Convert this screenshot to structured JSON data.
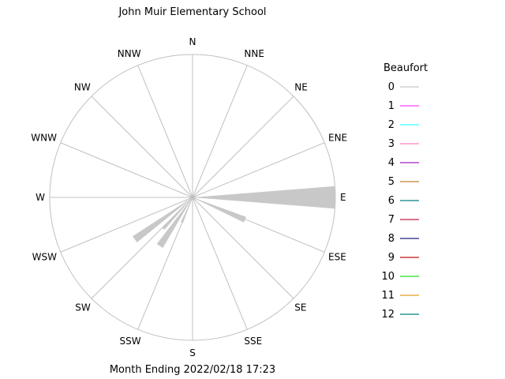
{
  "chart_data": {
    "type": "polar-bar",
    "title": "John Muir Elementary School",
    "subtitle": "Month Ending 2022/02/18 17:23",
    "directions": [
      "N",
      "NNE",
      "NE",
      "ENE",
      "E",
      "ESE",
      "SE",
      "SSE",
      "S",
      "SSW",
      "SW",
      "WSW",
      "W",
      "WNW",
      "NW",
      "NNW"
    ],
    "petals": [
      {
        "bearing": 90,
        "width": 9,
        "value": 1.0
      },
      {
        "bearing": 113,
        "width": 6,
        "value": 0.4
      },
      {
        "bearing": 158,
        "width": 2,
        "value": 0.07
      },
      {
        "bearing": 180,
        "width": 2,
        "value": 0.04
      },
      {
        "bearing": 203,
        "width": 5,
        "value": 0.19
      },
      {
        "bearing": 214,
        "width": 7,
        "value": 0.41
      },
      {
        "bearing": 223,
        "width": 4,
        "value": 0.3
      },
      {
        "bearing": 234,
        "width": 6,
        "value": 0.5
      },
      {
        "bearing": 245,
        "width": 3,
        "value": 0.07
      },
      {
        "bearing": 270,
        "width": 2,
        "value": 0.03
      }
    ],
    "petal_color": "#c8c8c8",
    "ring_color": "#c0c0c0",
    "legend": {
      "title": "Beaufort",
      "items": [
        {
          "label": "0",
          "color": "#c8c8c8"
        },
        {
          "label": "1",
          "color": "#ff40ff"
        },
        {
          "label": "2",
          "color": "#40ffff"
        },
        {
          "label": "3",
          "color": "#ff80c0"
        },
        {
          "label": "4",
          "color": "#a020c0"
        },
        {
          "label": "5",
          "color": "#c08030"
        },
        {
          "label": "6",
          "color": "#008080"
        },
        {
          "label": "7",
          "color": "#c02040"
        },
        {
          "label": "8",
          "color": "#202080"
        },
        {
          "label": "9",
          "color": "#c01010"
        },
        {
          "label": "10",
          "color": "#20e020"
        },
        {
          "label": "11",
          "color": "#e0a020"
        },
        {
          "label": "12",
          "color": "#008080"
        }
      ]
    }
  }
}
